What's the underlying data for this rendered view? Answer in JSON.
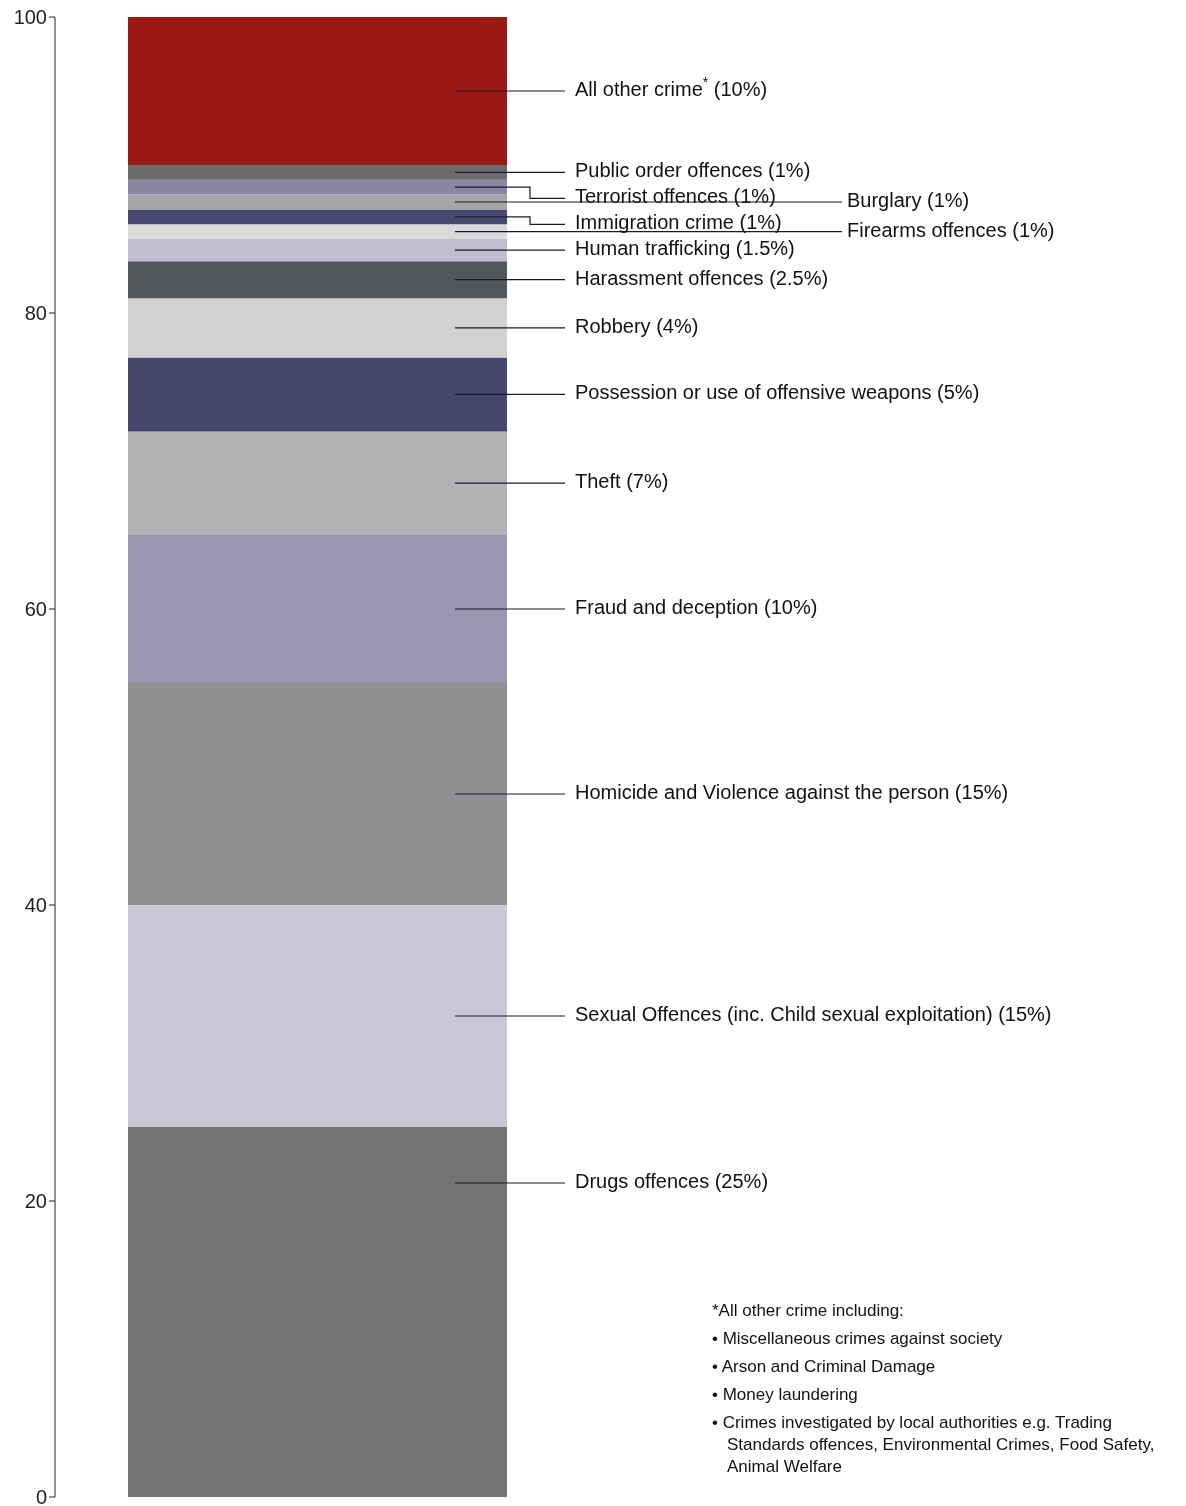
{
  "chart_data": {
    "type": "bar",
    "stacked": true,
    "categories": [
      null
    ],
    "ylim": [
      0,
      100
    ],
    "yticks": [
      0,
      20,
      40,
      60,
      80,
      100
    ],
    "series": [
      {
        "name": "Drugs offences (25%)",
        "color": "#737373",
        "values": [
          25
        ]
      },
      {
        "name": "Sexual Offences (inc. Child sexual exploitation) (15%)",
        "color": "#c9c8d6",
        "values": [
          15
        ]
      },
      {
        "name": "Homicide and Violence against the person (15%)",
        "color": "#908f91",
        "values": [
          15
        ]
      },
      {
        "name": "Fraud and deception (10%)",
        "color": "#9a97b0",
        "values": [
          10
        ]
      },
      {
        "name": "Theft (7%)",
        "color": "#b2b1b3",
        "values": [
          7
        ]
      },
      {
        "name": "Possession or use of offensive weapons (5%)",
        "color": "#46456b",
        "values": [
          5
        ]
      },
      {
        "name": "Robbery (4%)",
        "color": "#d2d2d2",
        "values": [
          4
        ]
      },
      {
        "name": "Harassment offences (2.5%)",
        "color": "#53575b",
        "values": [
          2.5
        ]
      },
      {
        "name": "Human trafficking (1.5%)",
        "color": "#bfbdcf",
        "values": [
          1.5
        ]
      },
      {
        "name": "Firearms offences (1%)",
        "color": "#dadada",
        "values": [
          1
        ]
      },
      {
        "name": "Immigration crime (1%)",
        "color": "#4a4870",
        "values": [
          1
        ]
      },
      {
        "name": "Burglary (1%)",
        "color": "#a5a5a5",
        "values": [
          1
        ]
      },
      {
        "name": "Terrorist offences (1%)",
        "color": "#8a87a3",
        "values": [
          1
        ]
      },
      {
        "name": "Public order offences (1%)",
        "color": "#6b6b6b",
        "values": [
          1
        ]
      },
      {
        "name": "All other crime$^{*}$ (10%)",
        "color": "#9b1915",
        "values": [
          10
        ]
      }
    ],
    "annotations": [
      "*All other crime including:",
      "• Miscellaneous crimes against society",
      "• Arson and Criminal Damage",
      "• Money laundering",
      "• Crimes investigated by local authorities e.g. Trading Standards offences, Environmental Crimes, Food Safety, Animal Welfare"
    ]
  }
}
